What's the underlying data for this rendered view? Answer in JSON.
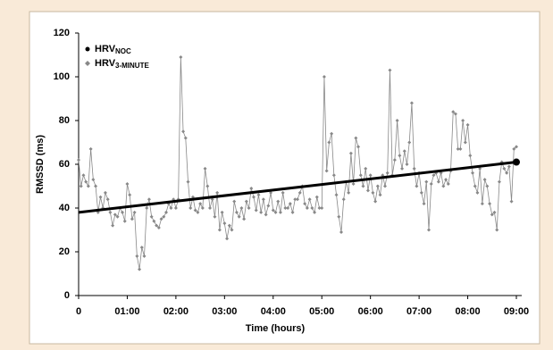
{
  "chart_data": {
    "type": "line",
    "xlabel": "Time (hours)",
    "ylabel": "RMSSD (ms)",
    "xlim": [
      0,
      9
    ],
    "ylim": [
      0,
      120
    ],
    "xticks": [
      0,
      {
        "value": 1,
        "label": "01:00"
      },
      {
        "value": 2,
        "label": "02:00"
      },
      {
        "value": 3,
        "label": "03:00"
      },
      {
        "value": 4,
        "label": "04:00"
      },
      {
        "value": 5,
        "label": "05:00"
      },
      {
        "value": 6,
        "label": "06:00"
      },
      {
        "value": 7,
        "label": "07:00"
      },
      {
        "value": 8,
        "label": "08:00"
      },
      {
        "value": 9,
        "label": "09:00"
      }
    ],
    "yticks": [
      0,
      20,
      40,
      60,
      80,
      100,
      120
    ],
    "legend": "upper-left",
    "series": [
      {
        "name": "HRV",
        "name_sub": "NOC",
        "color": "#000000",
        "marker": "circle",
        "x": [
          0,
          9
        ],
        "values": [
          38,
          61
        ]
      },
      {
        "name": "HRV",
        "name_sub": "3-MINUTE",
        "color": "#888888",
        "marker": "diamond",
        "x": [
          0,
          0.05,
          0.1,
          0.15,
          0.2,
          0.25,
          0.3,
          0.35,
          0.4,
          0.45,
          0.5,
          0.55,
          0.6,
          0.65,
          0.7,
          0.75,
          0.8,
          0.85,
          0.9,
          0.95,
          1,
          1.05,
          1.1,
          1.15,
          1.2,
          1.25,
          1.3,
          1.35,
          1.4,
          1.45,
          1.5,
          1.55,
          1.6,
          1.65,
          1.7,
          1.75,
          1.8,
          1.85,
          1.9,
          1.95,
          2,
          2.05,
          2.1,
          2.15,
          2.2,
          2.25,
          2.3,
          2.35,
          2.4,
          2.45,
          2.5,
          2.55,
          2.6,
          2.65,
          2.7,
          2.75,
          2.8,
          2.85,
          2.9,
          2.95,
          3,
          3.05,
          3.1,
          3.15,
          3.2,
          3.25,
          3.3,
          3.35,
          3.4,
          3.45,
          3.5,
          3.55,
          3.6,
          3.65,
          3.7,
          3.75,
          3.8,
          3.85,
          3.9,
          3.95,
          4,
          4.05,
          4.1,
          4.15,
          4.2,
          4.25,
          4.3,
          4.35,
          4.4,
          4.45,
          4.5,
          4.55,
          4.6,
          4.65,
          4.7,
          4.75,
          4.8,
          4.85,
          4.9,
          4.95,
          5,
          5.05,
          5.1,
          5.15,
          5.2,
          5.25,
          5.3,
          5.35,
          5.4,
          5.45,
          5.5,
          5.55,
          5.6,
          5.65,
          5.7,
          5.75,
          5.8,
          5.85,
          5.9,
          5.95,
          6,
          6.05,
          6.1,
          6.15,
          6.2,
          6.25,
          6.3,
          6.35,
          6.4,
          6.45,
          6.5,
          6.55,
          6.6,
          6.65,
          6.7,
          6.75,
          6.8,
          6.85,
          6.9,
          6.95,
          7,
          7.05,
          7.1,
          7.15,
          7.2,
          7.25,
          7.3,
          7.35,
          7.4,
          7.45,
          7.5,
          7.55,
          7.6,
          7.65,
          7.7,
          7.75,
          7.8,
          7.85,
          7.9,
          7.95,
          8,
          8.05,
          8.1,
          8.15,
          8.2,
          8.25,
          8.3,
          8.35,
          8.4,
          8.45,
          8.5,
          8.55,
          8.6,
          8.65,
          8.7,
          8.75,
          8.8,
          8.85,
          8.9,
          8.95,
          9
        ],
        "values": [
          62,
          50,
          55,
          52,
          50,
          67,
          53,
          50,
          38,
          45,
          40,
          47,
          44,
          38,
          32,
          37,
          36,
          40,
          38,
          34,
          51,
          46,
          35,
          38,
          18,
          12,
          22,
          18,
          40,
          44,
          36,
          34,
          32,
          31,
          35,
          36,
          38,
          42,
          40,
          44,
          40,
          44,
          109,
          75,
          72,
          52,
          40,
          45,
          39,
          38,
          42,
          40,
          58,
          50,
          40,
          44,
          36,
          47,
          30,
          38,
          33,
          26,
          32,
          30,
          43,
          38,
          36,
          40,
          35,
          43,
          40,
          49,
          45,
          39,
          46,
          38,
          44,
          37,
          41,
          47,
          39,
          38,
          43,
          38,
          47,
          40,
          40,
          42,
          38,
          44,
          44,
          47,
          50,
          42,
          40,
          44,
          40,
          38,
          45,
          40,
          40,
          100,
          57,
          70,
          74,
          55,
          46,
          36,
          29,
          44,
          52,
          47,
          65,
          51,
          72,
          68,
          55,
          50,
          58,
          48,
          55,
          47,
          43,
          50,
          46,
          55,
          50,
          56,
          103,
          55,
          62,
          80,
          64,
          58,
          66,
          60,
          70,
          88,
          58,
          50,
          56,
          47,
          42,
          52,
          30,
          51,
          55,
          56,
          52,
          56,
          50,
          53,
          51,
          57,
          84,
          83,
          67,
          67,
          80,
          70,
          78,
          64,
          56,
          50,
          47,
          58,
          42,
          53,
          50,
          42,
          37,
          38,
          30,
          52,
          61,
          58,
          56,
          59,
          43,
          67,
          68
        ]
      }
    ]
  }
}
